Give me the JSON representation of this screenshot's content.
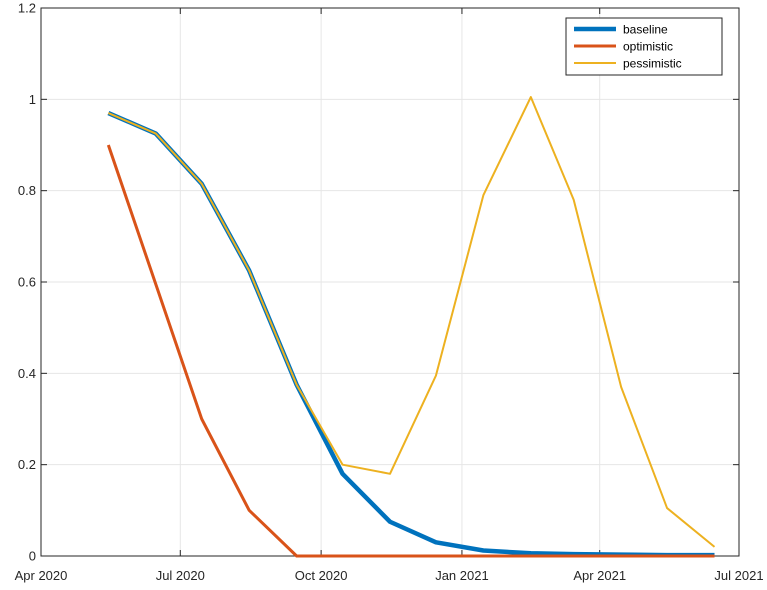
{
  "chart_data": {
    "type": "line",
    "x": [
      "2020-05-15",
      "2020-06-15",
      "2020-07-15",
      "2020-08-15",
      "2020-09-15",
      "2020-10-15",
      "2020-11-15",
      "2020-12-15",
      "2021-01-15",
      "2021-02-15",
      "2021-03-15",
      "2021-04-15",
      "2021-05-15",
      "2021-06-15"
    ],
    "series": [
      {
        "name": "baseline",
        "color": "#0072BD",
        "values": [
          0.97,
          0.925,
          0.815,
          0.625,
          0.375,
          0.18,
          0.075,
          0.03,
          0.012,
          0.006,
          0.004,
          0.003,
          0.002,
          0.002
        ]
      },
      {
        "name": "optimistic",
        "color": "#D95319",
        "values": [
          0.9,
          0.595,
          0.3,
          0.1,
          0.0,
          0.0,
          0.0,
          0.0,
          0.0,
          0.0,
          0.0,
          0.0,
          0.0,
          0.0
        ]
      },
      {
        "name": "pessimistic",
        "color": "#EDB120",
        "values": [
          0.97,
          0.925,
          0.815,
          0.625,
          0.375,
          0.2,
          0.18,
          0.395,
          0.79,
          1.005,
          0.78,
          0.37,
          0.105,
          0.02
        ]
      }
    ],
    "xlim": [
      "2020-04-01",
      "2021-07-01"
    ],
    "ylim": [
      0,
      1.2
    ],
    "xticks": [
      "2020-04-01",
      "2020-07-01",
      "2020-10-01",
      "2021-01-01",
      "2021-04-01",
      "2021-07-01"
    ],
    "xtick_labels": [
      "Apr 2020",
      "Jul 2020",
      "Oct 2020",
      "Jan 2021",
      "Apr 2021",
      "Jul 2021"
    ],
    "yticks": [
      0,
      0.2,
      0.4,
      0.6,
      0.8,
      1,
      1.2
    ],
    "ytick_labels": [
      "0",
      "0.2",
      "0.4",
      "0.6",
      "0.8",
      "1",
      "1.2"
    ],
    "grid": true,
    "legend_position": "top-right",
    "title": "",
    "xlabel": "",
    "ylabel": ""
  }
}
